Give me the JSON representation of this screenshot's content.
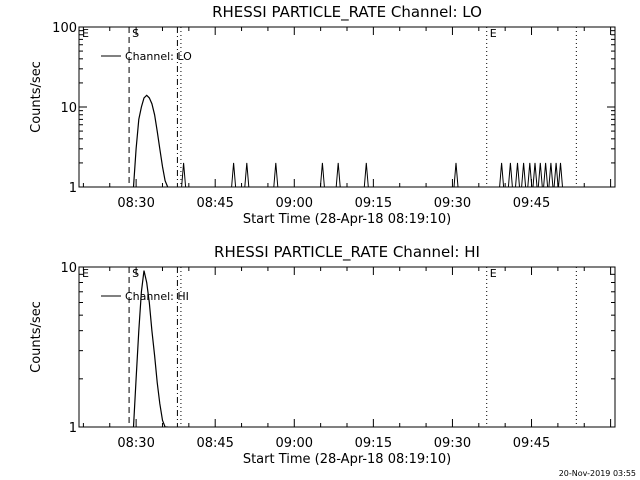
{
  "chart_data": [
    {
      "type": "line",
      "title": "RHESSI PARTICLE_RATE Channel: LO",
      "xlabel": "Start Time (28-Apr-18 08:19:10)",
      "ylabel": "Counts/sec",
      "yscale": "log",
      "ylim": [
        1,
        100
      ],
      "y_ticks": [
        "1",
        "10",
        "100"
      ],
      "x_ticks": [
        "08:30",
        "08:45",
        "09:00",
        "09:15",
        "09:30",
        "09:45"
      ],
      "xlim": [
        "08:19:10",
        "10:00:50"
      ],
      "legend": {
        "label": "Channel: LO",
        "placement": "top-left"
      },
      "markers": [
        {
          "label": "E",
          "time": "08:19:10",
          "style": "none"
        },
        {
          "label": "S",
          "time": "08:28:40",
          "style": "dashed"
        },
        {
          "label": "",
          "time": "08:37:50",
          "style": "dash-dot"
        },
        {
          "label": "",
          "time": "08:38:30",
          "style": "dotted"
        },
        {
          "label": "E",
          "time": "09:36:30",
          "style": "dotted"
        },
        {
          "label": "",
          "time": "09:53:30",
          "style": "dotted"
        }
      ],
      "series": [
        {
          "name": "Channel: LO",
          "x": [
            "08:29:30",
            "08:30:00",
            "08:30:30",
            "08:31:00",
            "08:31:30",
            "08:32:00",
            "08:32:30",
            "08:33:00",
            "08:33:30",
            "08:34:00",
            "08:34:30",
            "08:35:00",
            "08:35:30",
            "08:36:00"
          ],
          "y": [
            1,
            3,
            7,
            10,
            13,
            14,
            13,
            11,
            8,
            5,
            3,
            1.8,
            1.2,
            1
          ]
        }
      ],
      "spikes": {
        "peak_value": 2,
        "times": [
          "08:39:00",
          "08:48:30",
          "08:51:00",
          "08:56:30",
          "09:05:20",
          "09:08:20",
          "09:13:40",
          "09:30:40",
          "09:39:20",
          "09:41:00",
          "09:42:20",
          "09:43:30",
          "09:44:40",
          "09:45:40",
          "09:46:40",
          "09:47:40",
          "09:48:40",
          "09:49:40",
          "09:50:30"
        ]
      }
    },
    {
      "type": "line",
      "title": "RHESSI PARTICLE_RATE Channel: HI",
      "xlabel": "Start Time (28-Apr-18 08:19:10)",
      "ylabel": "Counts/sec",
      "yscale": "log",
      "ylim": [
        1,
        10
      ],
      "y_ticks": [
        "1",
        "10"
      ],
      "x_ticks": [
        "08:30",
        "08:45",
        "09:00",
        "09:15",
        "09:30",
        "09:45"
      ],
      "xlim": [
        "08:19:10",
        "10:00:50"
      ],
      "legend": {
        "label": "Channel: HI",
        "placement": "top-left"
      },
      "markers": [
        {
          "label": "E",
          "time": "08:19:10",
          "style": "none"
        },
        {
          "label": "S",
          "time": "08:28:40",
          "style": "dashed"
        },
        {
          "label": "",
          "time": "08:37:50",
          "style": "dash-dot"
        },
        {
          "label": "",
          "time": "08:38:30",
          "style": "dotted"
        },
        {
          "label": "E",
          "time": "09:36:30",
          "style": "dotted"
        },
        {
          "label": "",
          "time": "09:53:30",
          "style": "dotted"
        }
      ],
      "series": [
        {
          "name": "Channel: HI",
          "x": [
            "08:29:30",
            "08:30:00",
            "08:30:30",
            "08:31:00",
            "08:31:30",
            "08:32:00",
            "08:32:30",
            "08:33:00",
            "08:33:30",
            "08:34:00",
            "08:34:30",
            "08:35:00",
            "08:35:30",
            "08:36:00"
          ],
          "y": [
            1,
            2,
            4,
            7,
            9.5,
            8,
            6,
            4,
            2.8,
            1.9,
            1.4,
            1.1,
            1,
            1
          ]
        }
      ],
      "spikes": {
        "peak_value": 1,
        "times": []
      }
    }
  ],
  "footer": {
    "timestamp": "20-Nov-2019 03:55"
  }
}
